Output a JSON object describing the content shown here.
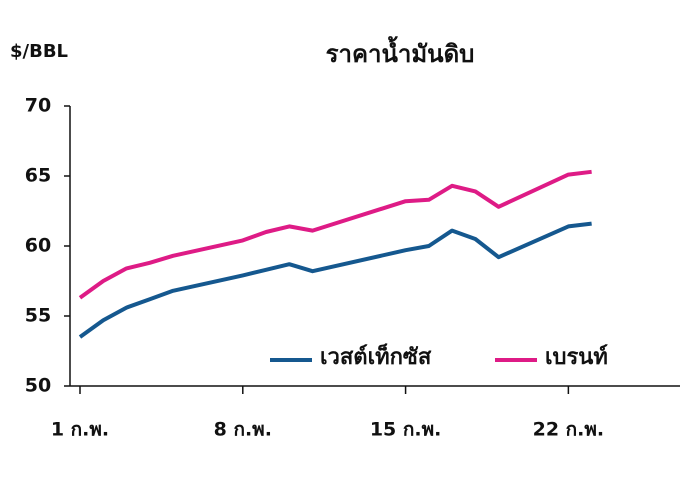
{
  "chart_data": {
    "type": "line",
    "title": "ราคาน้ำมันดิบ",
    "y_label": "$/BBL",
    "x": [
      1,
      2,
      3,
      4,
      5,
      8,
      9,
      10,
      11,
      15,
      16,
      17,
      18,
      19,
      22,
      23
    ],
    "xlim": [
      0.57,
      26.8
    ],
    "xticks": [
      {
        "value": 1,
        "label": "1 ก.พ."
      },
      {
        "value": 8,
        "label": "8 ก.พ."
      },
      {
        "value": 15,
        "label": "15 ก.พ."
      },
      {
        "value": 22,
        "label": "22 ก.พ."
      }
    ],
    "ylim": [
      50,
      70
    ],
    "yticks": [
      50,
      55,
      60,
      65,
      70
    ],
    "series": [
      {
        "name": "เวสต์เท็กซัส",
        "color": "#15588f",
        "values": [
          53.5,
          54.7,
          55.6,
          56.2,
          56.8,
          57.9,
          58.3,
          58.7,
          58.2,
          59.7,
          60.0,
          61.1,
          60.5,
          59.2,
          61.4,
          61.6
        ]
      },
      {
        "name": "เบรนท์",
        "color": "#de1b86",
        "values": [
          56.3,
          57.5,
          58.4,
          58.8,
          59.3,
          60.4,
          61.0,
          61.4,
          61.1,
          63.2,
          63.3,
          64.3,
          63.9,
          62.8,
          65.1,
          65.3
        ]
      }
    ]
  }
}
